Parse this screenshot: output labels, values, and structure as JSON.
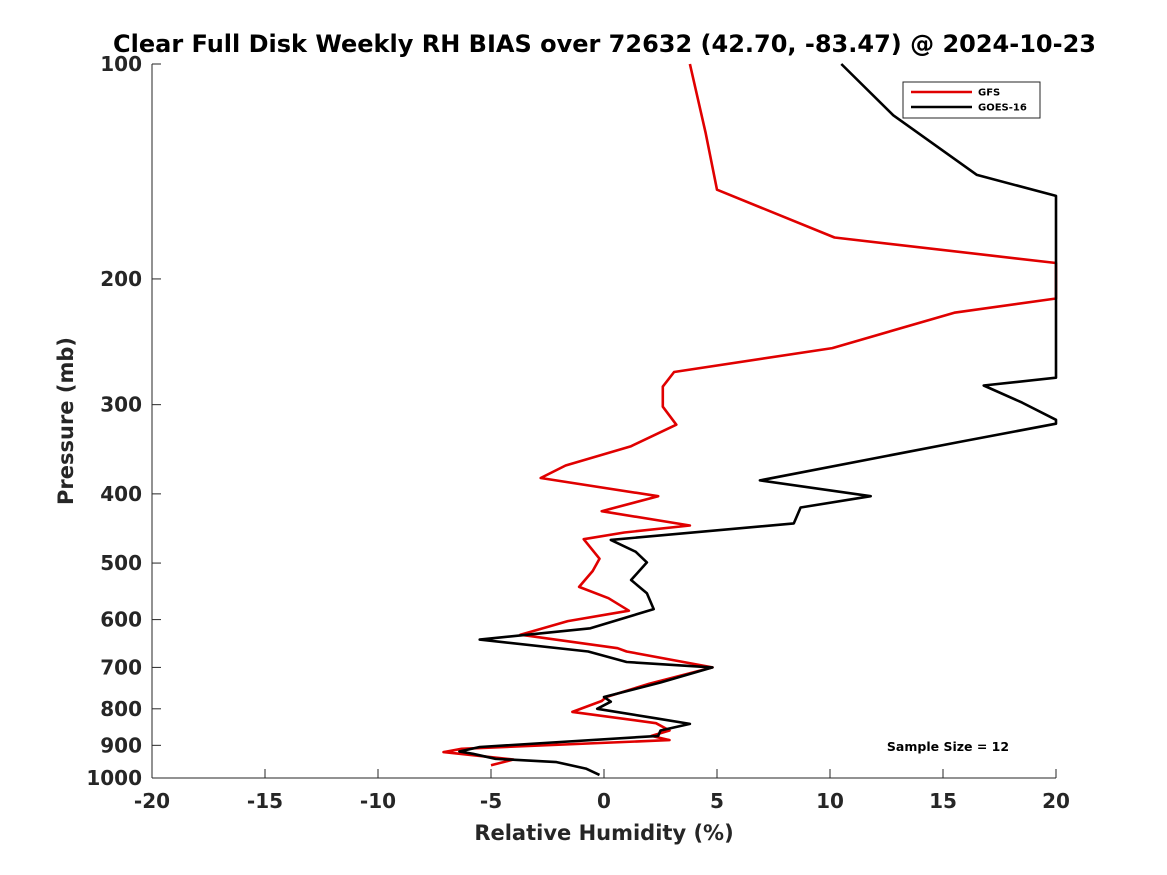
{
  "chart_data": {
    "type": "line",
    "title": "Clear Full Disk Weekly RH BIAS over 72632 (42.70, -83.47) @ 2024-10-23",
    "xlabel": "Relative Humidity (%)",
    "ylabel": "Pressure (mb)",
    "xlim": [
      -20,
      20
    ],
    "ylim": [
      100,
      1000
    ],
    "yscale": "log",
    "y_reversed": true,
    "x_ticks": [
      "-20",
      "-15",
      "-10",
      "-5",
      "0",
      "5",
      "10",
      "15",
      "20"
    ],
    "y_ticks": [
      "100",
      "200",
      "300",
      "400",
      "500",
      "600",
      "700",
      "800",
      "900",
      "1000"
    ],
    "grid": false,
    "legend_position": "top-right",
    "annotation": "Sample Size = 12",
    "series": [
      {
        "name": "GFS",
        "color": "#e00000",
        "points": [
          [
            3.8,
            100
          ],
          [
            4.5,
            125
          ],
          [
            5.0,
            150
          ],
          [
            10.2,
            175
          ],
          [
            20.0,
            190
          ],
          [
            20.0,
            213
          ],
          [
            15.5,
            223
          ],
          [
            10.1,
            250
          ],
          [
            3.1,
            270
          ],
          [
            2.6,
            283
          ],
          [
            2.6,
            302
          ],
          [
            3.2,
            320
          ],
          [
            1.2,
            343
          ],
          [
            -1.7,
            365
          ],
          [
            -2.8,
            380
          ],
          [
            2.4,
            403
          ],
          [
            -0.1,
            423
          ],
          [
            3.8,
            443
          ],
          [
            0.9,
            453
          ],
          [
            -0.9,
            463
          ],
          [
            -0.2,
            493
          ],
          [
            -0.5,
            513
          ],
          [
            -1.1,
            540
          ],
          [
            0.2,
            560
          ],
          [
            1.1,
            583
          ],
          [
            -1.6,
            603
          ],
          [
            -3.7,
            630
          ],
          [
            0.6,
            658
          ],
          [
            1.0,
            665
          ],
          [
            4.8,
            700
          ],
          [
            2.0,
            738
          ],
          [
            0.1,
            770
          ],
          [
            -0.1,
            780
          ],
          [
            -1.4,
            808
          ],
          [
            2.3,
            838
          ],
          [
            2.9,
            858
          ],
          [
            2.1,
            873
          ],
          [
            2.9,
            885
          ],
          [
            -6.3,
            910
          ],
          [
            -7.1,
            920
          ],
          [
            -4.0,
            942
          ],
          [
            -5.0,
            960
          ]
        ]
      },
      {
        "name": "GOES-16",
        "color": "#000000",
        "points": [
          [
            10.5,
            100
          ],
          [
            12.8,
            118
          ],
          [
            16.5,
            143
          ],
          [
            20.0,
            153
          ],
          [
            20.0,
            275
          ],
          [
            16.8,
            282
          ],
          [
            18.5,
            298
          ],
          [
            20.0,
            315
          ],
          [
            20.0,
            319
          ],
          [
            15.8,
            338
          ],
          [
            6.9,
            383
          ],
          [
            11.8,
            403
          ],
          [
            8.7,
            418
          ],
          [
            8.4,
            440
          ],
          [
            0.3,
            464
          ],
          [
            1.4,
            482
          ],
          [
            1.9,
            499
          ],
          [
            1.2,
            528
          ],
          [
            1.9,
            551
          ],
          [
            2.2,
            580
          ],
          [
            -0.6,
            617
          ],
          [
            -5.5,
            640
          ],
          [
            -0.7,
            665
          ],
          [
            1.0,
            688
          ],
          [
            4.8,
            700
          ],
          [
            2.5,
            735
          ],
          [
            0.0,
            770
          ],
          [
            0.3,
            782
          ],
          [
            -0.3,
            800
          ],
          [
            2.3,
            825
          ],
          [
            3.8,
            840
          ],
          [
            2.5,
            858
          ],
          [
            2.4,
            873
          ],
          [
            -5.5,
            905
          ],
          [
            -6.4,
            918
          ],
          [
            -5.8,
            925
          ],
          [
            -4.8,
            940
          ],
          [
            -2.1,
            950
          ],
          [
            -0.8,
            970
          ],
          [
            -0.2,
            990
          ]
        ]
      }
    ]
  }
}
